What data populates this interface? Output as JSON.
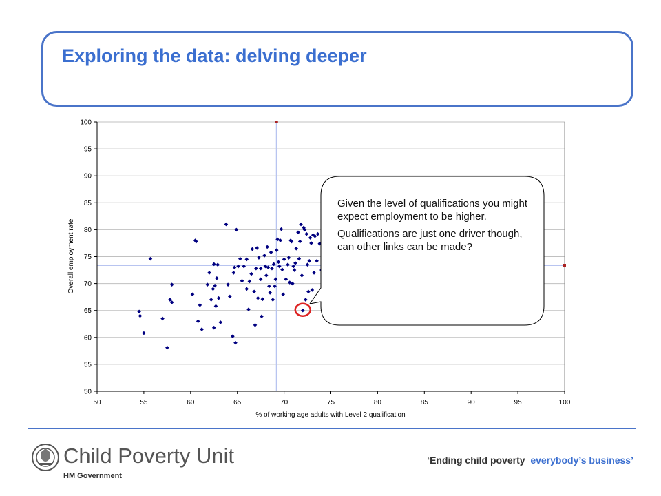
{
  "slide": {
    "title": "Exploring the data: delving deeper"
  },
  "callout": {
    "paragraphs": [
      "Given the level of qualifications you might expect employment to be higher.",
      "Qualifications are just one driver though, can other links can be made?"
    ]
  },
  "footer": {
    "logo_name": "Child Poverty Unit",
    "logo_sub": "HM Government",
    "tagline_part1": "‘Ending child poverty",
    "tagline_part2": "everybody’s business’"
  },
  "colors": {
    "title": "#3b6fd0",
    "frame": "#4a74c9",
    "points": "#000080",
    "crosshair": "#b8c4f0",
    "highlight": "#dd2222",
    "grid": "#c0c0c0"
  },
  "chart_data": {
    "type": "scatter",
    "title": "",
    "xlabel": "% of working age adults with Level 2 qualification",
    "ylabel": "Overall employment rate",
    "xlim": [
      50,
      100
    ],
    "ylim": [
      50,
      100
    ],
    "xticks": [
      50,
      55,
      60,
      65,
      70,
      75,
      80,
      85,
      90,
      95,
      100
    ],
    "yticks": [
      50,
      55,
      60,
      65,
      70,
      75,
      80,
      85,
      90,
      95,
      100
    ],
    "grid": "horizontal",
    "reference_lines": {
      "x": 69.2,
      "y": 73.4
    },
    "highlighted_point": [
      72,
      65
    ],
    "series": [
      {
        "points": [
          [
            54.5,
            64.8
          ],
          [
            54.6,
            64
          ],
          [
            55,
            60.8
          ],
          [
            55.7,
            74.6
          ],
          [
            57,
            63.5
          ],
          [
            57.5,
            58.1
          ],
          [
            57.8,
            67
          ],
          [
            58,
            66.5
          ],
          [
            58,
            69.8
          ],
          [
            60.2,
            68
          ],
          [
            60.5,
            78
          ],
          [
            60.6,
            77.8
          ],
          [
            60.8,
            63
          ],
          [
            61,
            66
          ],
          [
            61.2,
            61.5
          ],
          [
            61.8,
            69.8
          ],
          [
            62,
            72
          ],
          [
            62.2,
            67
          ],
          [
            62.4,
            69
          ],
          [
            62.5,
            61.8
          ],
          [
            62.5,
            73.6
          ],
          [
            62.6,
            69.6
          ],
          [
            62.7,
            65.8
          ],
          [
            62.8,
            71
          ],
          [
            62.9,
            73.5
          ],
          [
            63,
            67.3
          ],
          [
            63.2,
            62.8
          ],
          [
            63.8,
            81
          ],
          [
            64,
            69.8
          ],
          [
            64.2,
            67.6
          ],
          [
            64.5,
            60.2
          ],
          [
            64.6,
            72
          ],
          [
            64.7,
            73
          ],
          [
            64.8,
            59
          ],
          [
            64.9,
            80
          ],
          [
            65.1,
            73.2
          ],
          [
            65.3,
            74.6
          ],
          [
            65.5,
            70.5
          ],
          [
            65.7,
            73.2
          ],
          [
            66,
            69
          ],
          [
            66,
            74.5
          ],
          [
            66.2,
            65.2
          ],
          [
            66.3,
            70.4
          ],
          [
            66.5,
            71.8
          ],
          [
            66.6,
            76.4
          ],
          [
            66.8,
            68.5
          ],
          [
            66.9,
            62.3
          ],
          [
            67,
            72.8
          ],
          [
            67.1,
            76.6
          ],
          [
            67.2,
            67.3
          ],
          [
            67.3,
            74.8
          ],
          [
            67.5,
            70.8
          ],
          [
            67.5,
            72.8
          ],
          [
            67.6,
            63.9
          ],
          [
            67.7,
            67.1
          ],
          [
            67.9,
            75.2
          ],
          [
            68,
            73.2
          ],
          [
            68.1,
            71.5
          ],
          [
            68.2,
            76.8
          ],
          [
            68.3,
            73
          ],
          [
            68.4,
            69.5
          ],
          [
            68.5,
            68.3
          ],
          [
            68.6,
            75.8
          ],
          [
            68.7,
            72.8
          ],
          [
            68.8,
            67
          ],
          [
            68.9,
            73.6
          ],
          [
            69,
            69.5
          ],
          [
            69.1,
            70.8
          ],
          [
            69.2,
            76.2
          ],
          [
            69.3,
            78.2
          ],
          [
            69.4,
            74
          ],
          [
            69.5,
            73.2
          ],
          [
            69.6,
            78
          ],
          [
            69.7,
            80.1
          ],
          [
            69.8,
            72.6
          ],
          [
            69.9,
            68
          ],
          [
            70,
            74.5
          ],
          [
            70.2,
            70.8
          ],
          [
            70.4,
            73.5
          ],
          [
            70.5,
            74.8
          ],
          [
            70.6,
            70.2
          ],
          [
            70.7,
            78
          ],
          [
            70.8,
            77.8
          ],
          [
            70.9,
            70
          ],
          [
            71,
            73.2
          ],
          [
            71.1,
            72.5
          ],
          [
            71.2,
            73.8
          ],
          [
            71.3,
            76.5
          ],
          [
            71.5,
            79.5
          ],
          [
            71.6,
            74.6
          ],
          [
            71.7,
            77.8
          ],
          [
            71.8,
            81
          ],
          [
            71.9,
            71.5
          ],
          [
            72,
            65
          ],
          [
            72.1,
            80.4
          ],
          [
            72.2,
            80
          ],
          [
            72.3,
            67
          ],
          [
            72.4,
            79.2
          ],
          [
            72.5,
            73.5
          ],
          [
            72.6,
            68.5
          ],
          [
            72.7,
            74.2
          ],
          [
            72.8,
            78.5
          ],
          [
            72.9,
            77.5
          ],
          [
            73,
            68.8
          ],
          [
            73.1,
            79
          ],
          [
            73.2,
            72
          ],
          [
            73.3,
            78.8
          ],
          [
            73.5,
            74.2
          ],
          [
            73.6,
            79.2
          ],
          [
            73.8,
            77.4
          ],
          [
            74,
            72.5
          ],
          [
            74.2,
            80.7
          ],
          [
            74.5,
            70
          ]
        ]
      },
      {
        "marker": "reference",
        "points": [
          [
            69.2,
            100
          ],
          [
            100,
            73.4
          ]
        ]
      }
    ]
  }
}
